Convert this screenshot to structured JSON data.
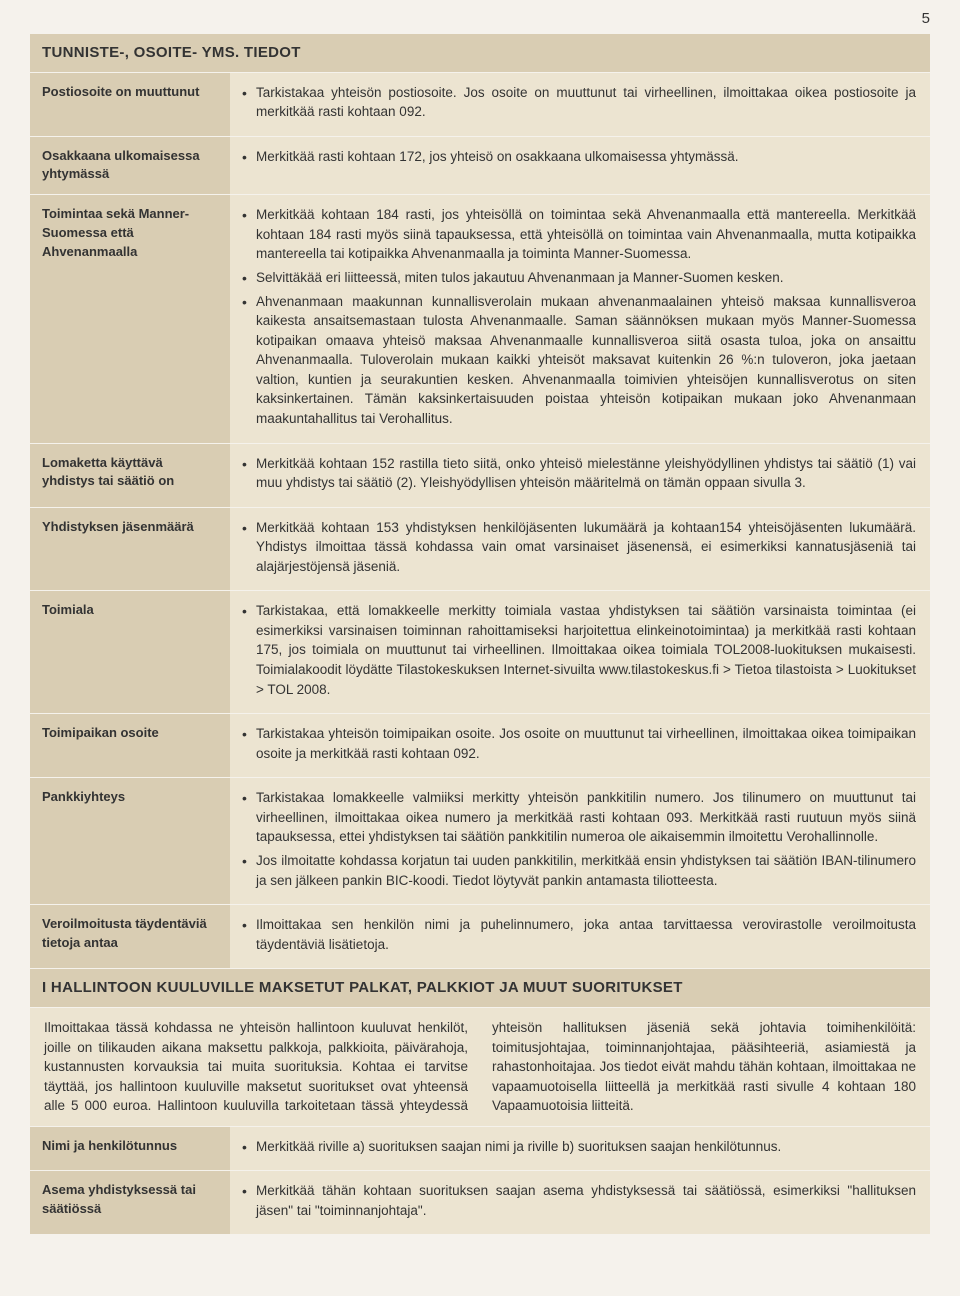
{
  "page_number": "5",
  "colors": {
    "page_bg": "#f5f2ec",
    "header_bg": "#d9cdb3",
    "cell_bg": "#ece4d1",
    "text": "#333333"
  },
  "section1": {
    "title": "TUNNISTE-, OSOITE- YMS. TIEDOT",
    "rows": [
      {
        "label": "Postiosoite on muuttunut",
        "bullets": [
          "Tarkistakaa yhteisön postiosoite. Jos osoite on muuttunut tai virheellinen, ilmoittakaa oikea postiosoite ja merkitkää rasti kohtaan 092."
        ]
      },
      {
        "label": "Osakkaana ulkomaisessa yhtymässä",
        "bullets": [
          "Merkitkää rasti kohtaan 172, jos yhteisö on osakkaana ulkomaisessa yhtymässä."
        ]
      },
      {
        "label": "Toimintaa sekä Manner-Suomessa että Ahvenanmaalla",
        "bullets": [
          "Merkitkää kohtaan 184 rasti, jos yhteisöllä on toimintaa sekä Ahvenanmaalla että mantereella. Merkitkää kohtaan 184 rasti myös siinä tapauksessa, että yhteisöllä on toimintaa vain Ahvenanmaalla, mutta kotipaikka mantereella tai kotipaikka Ahvenanmaalla ja toiminta Manner-Suomessa.",
          "Selvittäkää eri liitteessä, miten tulos jakautuu Ahvenanmaan ja Manner-Suomen kesken.",
          "Ahvenanmaan maakunnan kunnallisverolain mukaan ahvenanmaalainen yhteisö maksaa kunnallisveroa kaikesta ansaitsemastaan tulosta Ahvenanmaalle. Saman säännöksen mukaan myös Manner-Suomessa kotipaikan omaava yhteisö maksaa Ahvenanmaalle kunnallisveroa siitä osasta tuloa, joka on ansaittu Ahvenanmaalla. Tuloverolain mukaan kaikki yhteisöt maksavat kuitenkin 26 %:n tuloveron, joka jaetaan valtion, kuntien ja seurakuntien kesken. Ahvenanmaalla toimivien yhteisöjen kunnallisverotus on siten kaksinkertainen. Tämän kaksinkertaisuuden poistaa yhteisön kotipaikan mukaan joko Ahvenanmaan maakuntahallitus tai Verohallitus."
        ]
      },
      {
        "label": "Lomaketta käyttävä yhdistys tai säätiö on",
        "bullets": [
          "Merkitkää kohtaan 152 rastilla tieto siitä, onko yhteisö mielestänne yleishyödyllinen yhdistys tai säätiö (1) vai muu yhdistys tai säätiö (2). Yleishyödyllisen yhteisön määritelmä on tämän oppaan sivulla 3."
        ]
      },
      {
        "label": "Yhdistyksen jäsenmäärä",
        "bullets": [
          "Merkitkää kohtaan 153 yhdistyksen henkilöjäsenten lukumäärä ja kohtaan154 yhteisöjäsenten lukumäärä. Yhdistys ilmoittaa tässä kohdassa vain omat varsinaiset jäsenensä, ei esimerkiksi kannatusjäseniä tai alajärjestöjensä jäseniä."
        ]
      },
      {
        "label": "Toimiala",
        "bullets": [
          "Tarkistakaa, että lomakkeelle merkitty toimiala vastaa yhdistyksen tai säätiön varsinaista toimintaa (ei esimerkiksi varsinaisen toiminnan rahoittamiseksi harjoitettua elinkeinotoimintaa) ja merkitkää rasti kohtaan 175, jos toimiala on muuttunut tai virheellinen. Ilmoittakaa oikea toimiala TOL2008-luokituksen mukaisesti. Toimialakoodit löydätte Tilastokeskuksen Internet-sivuilta www.tilastokeskus.fi > Tietoa tilastoista > Luokitukset > TOL 2008."
        ]
      },
      {
        "label": "Toimipaikan osoite",
        "bullets": [
          "Tarkistakaa yhteisön toimipaikan osoite. Jos osoite on muuttunut tai virheellinen, ilmoittakaa oikea toimipaikan osoite ja merkitkää rasti kohtaan 092."
        ]
      },
      {
        "label": "Pankkiyhteys",
        "bullets": [
          "Tarkistakaa lomakkeelle valmiiksi merkitty yhteisön pankkitilin numero. Jos tilinumero on muuttunut tai virheellinen, ilmoittakaa oikea numero ja merkitkää rasti kohtaan 093. Merkitkää rasti ruutuun myös siinä tapauksessa, ettei yhdistyksen tai säätiön pankkitilin numeroa ole aikaisemmin ilmoitettu Verohallinnolle.",
          "Jos ilmoitatte kohdassa korjatun tai uuden pankkitilin, merkitkää ensin yhdistyksen tai säätiön IBAN-tilinumero ja sen jälkeen pankin BIC-koodi. Tiedot löytyvät pankin antamasta tiliotteesta."
        ]
      },
      {
        "label": "Veroilmoitusta täydentäviä tietoja antaa",
        "bullets": [
          "Ilmoittakaa sen henkilön nimi ja puhelinnumero, joka antaa tarvittaessa verovirastolle veroilmoitusta täydentäviä lisätietoja."
        ]
      }
    ]
  },
  "section2": {
    "title": "I HALLINTOON KUULUVILLE MAKSETUT PALKAT, PALKKIOT JA MUUT SUORITUKSET",
    "intro": "Ilmoittakaa tässä kohdassa ne yhteisön hallintoon kuuluvat henkilöt, joille on tilikauden aikana maksettu palkkoja, palkkioita, päivärahoja, kustannusten korvauksia tai muita suorituksia. Kohtaa ei tarvitse täyttää, jos hallintoon kuuluville maksetut suoritukset ovat yhteensä alle 5 000 euroa. Hallintoon kuuluvilla tarkoitetaan tässä yhteydessä yhteisön hallituksen jäseniä sekä johtavia toimihenkilöitä: toimitusjohtajaa, toiminnanjohtajaa, pääsihteeriä, asiamiestä ja rahastonhoitajaa. Jos tiedot eivät mahdu tähän kohtaan, ilmoittakaa ne vapaamuotoisella liitteellä ja merkitkää rasti sivulle 4 kohtaan 180 Vapaamuotoisia liitteitä.",
    "rows": [
      {
        "label": "Nimi ja henkilötunnus",
        "bullets": [
          "Merkitkää riville a) suorituksen saajan nimi ja riville b) suorituksen saajan henkilötunnus."
        ]
      },
      {
        "label": "Asema yhdistyksessä tai säätiössä",
        "bullets": [
          "Merkitkää tähän kohtaan suorituksen saajan asema yhdistyksessä tai säätiössä, esimerkiksi \"hallituksen jäsen\" tai \"toiminnanjohtaja\"."
        ]
      }
    ]
  }
}
